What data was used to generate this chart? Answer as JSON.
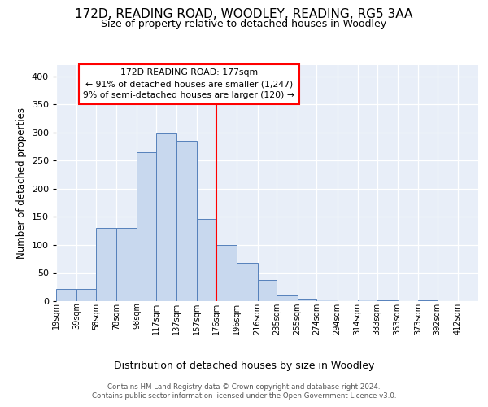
{
  "title": "172D, READING ROAD, WOODLEY, READING, RG5 3AA",
  "subtitle": "Size of property relative to detached houses in Woodley",
  "xlabel": "Distribution of detached houses by size in Woodley",
  "ylabel": "Number of detached properties",
  "bar_color": "#c8d8ee",
  "bar_edge_color": "#5580bb",
  "bg_color": "#e8eef8",
  "grid_color": "#ffffff",
  "red_line_x": 176,
  "annotation_title": "172D READING ROAD: 177sqm",
  "annotation_line1": "← 91% of detached houses are smaller (1,247)",
  "annotation_line2": "9% of semi-detached houses are larger (120) →",
  "footnote1": "Contains HM Land Registry data © Crown copyright and database right 2024.",
  "footnote2": "Contains public sector information licensed under the Open Government Licence v3.0.",
  "bins": [
    19,
    39,
    58,
    78,
    98,
    117,
    137,
    157,
    176,
    196,
    216,
    235,
    255,
    274,
    294,
    314,
    333,
    353,
    373,
    392,
    412
  ],
  "bin_labels": [
    "19sqm",
    "39sqm",
    "58sqm",
    "78sqm",
    "98sqm",
    "117sqm",
    "137sqm",
    "157sqm",
    "176sqm",
    "196sqm",
    "216sqm",
    "235sqm",
    "255sqm",
    "274sqm",
    "294sqm",
    "314sqm",
    "333sqm",
    "353sqm",
    "373sqm",
    "392sqm",
    "412sqm"
  ],
  "bar_heights": [
    22,
    22,
    130,
    130,
    265,
    298,
    285,
    147,
    100,
    68,
    37,
    10,
    5,
    3,
    0,
    3,
    2,
    0,
    2,
    0,
    0
  ],
  "ylim": [
    0,
    420
  ],
  "yticks": [
    0,
    50,
    100,
    150,
    200,
    250,
    300,
    350,
    400
  ]
}
